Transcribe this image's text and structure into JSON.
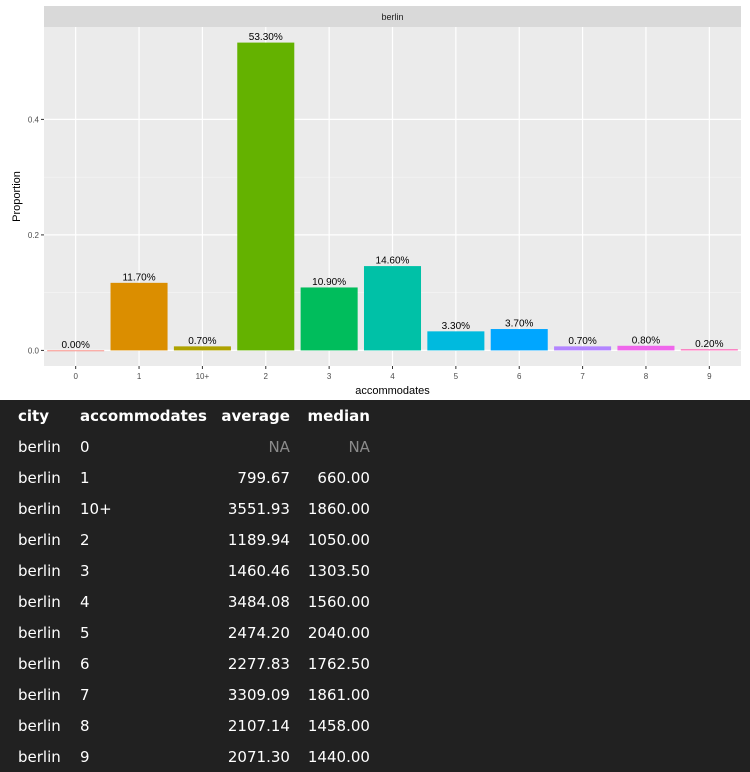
{
  "chart_data": {
    "type": "bar",
    "facet_label": "berlin",
    "xlabel": "accommodates",
    "ylabel": "Proportion",
    "categories": [
      "0",
      "1",
      "10+",
      "2",
      "3",
      "4",
      "5",
      "6",
      "7",
      "8",
      "9"
    ],
    "values": [
      0.0,
      0.117,
      0.007,
      0.533,
      0.109,
      0.146,
      0.033,
      0.037,
      0.007,
      0.008,
      0.002
    ],
    "value_labels": [
      "0.00%",
      "11.70%",
      "0.70%",
      "53.30%",
      "10.90%",
      "14.60%",
      "3.30%",
      "3.70%",
      "0.70%",
      "0.80%",
      "0.20%"
    ],
    "colors": [
      "#F8766D",
      "#DB8E00",
      "#AEA200",
      "#64B200",
      "#00BD5C",
      "#00C1A7",
      "#00BADE",
      "#00A6FF",
      "#B385FF",
      "#EF67EB",
      "#FF63B6"
    ],
    "yticks": [
      0.0,
      0.2,
      0.4
    ],
    "ytick_labels": [
      "0.0",
      "0.2",
      "0.4"
    ],
    "ylim": [
      -0.027,
      0.56
    ],
    "grid": true,
    "legend": "none"
  },
  "table": {
    "headers": [
      "city",
      "accommodates",
      "average",
      "median"
    ],
    "rows": [
      [
        "berlin",
        "0",
        "NA",
        "NA"
      ],
      [
        "berlin",
        "1",
        "799.67",
        "660.00"
      ],
      [
        "berlin",
        "10+",
        "3551.93",
        "1860.00"
      ],
      [
        "berlin",
        "2",
        "1189.94",
        "1050.00"
      ],
      [
        "berlin",
        "3",
        "1460.46",
        "1303.50"
      ],
      [
        "berlin",
        "4",
        "3484.08",
        "1560.00"
      ],
      [
        "berlin",
        "5",
        "2474.20",
        "2040.00"
      ],
      [
        "berlin",
        "6",
        "2277.83",
        "1762.50"
      ],
      [
        "berlin",
        "7",
        "3309.09",
        "1861.00"
      ],
      [
        "berlin",
        "8",
        "2107.14",
        "1458.00"
      ],
      [
        "berlin",
        "9",
        "2071.30",
        "1440.00"
      ]
    ]
  }
}
